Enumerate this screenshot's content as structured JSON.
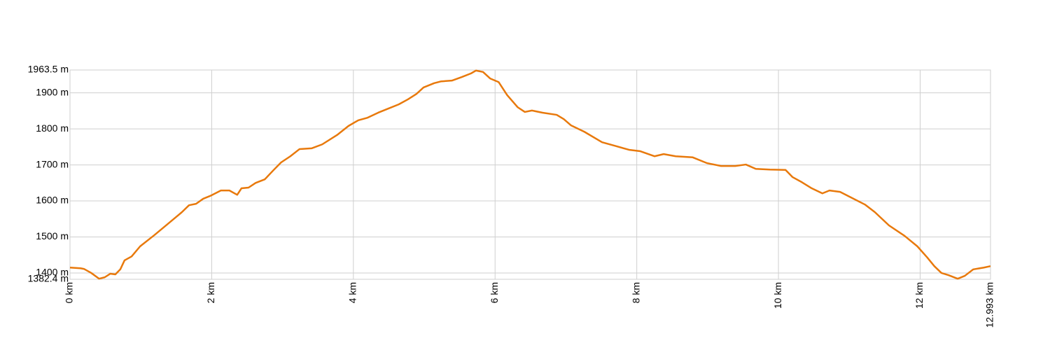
{
  "chart_data": {
    "type": "line",
    "color": "#e8790c",
    "grid": true,
    "x": [
      0,
      0.15,
      0.2,
      0.3,
      0.41,
      0.49,
      0.57,
      0.64,
      0.71,
      0.77,
      0.87,
      0.99,
      1.19,
      1.38,
      1.58,
      1.68,
      1.78,
      1.88,
      1.98,
      2.13,
      2.25,
      2.36,
      2.42,
      2.52,
      2.62,
      2.75,
      2.87,
      2.98,
      3.11,
      3.24,
      3.41,
      3.56,
      3.77,
      3.93,
      4.07,
      4.2,
      4.35,
      4.5,
      4.64,
      4.77,
      4.89,
      4.99,
      5.14,
      5.24,
      5.39,
      5.53,
      5.66,
      5.73,
      5.83,
      5.93,
      6.05,
      6.17,
      6.32,
      6.42,
      6.52,
      6.67,
      6.87,
      6.97,
      7.07,
      7.26,
      7.51,
      7.71,
      7.89,
      8.05,
      8.25,
      8.38,
      8.55,
      8.79,
      8.99,
      9.19,
      9.39,
      9.54,
      9.68,
      9.88,
      10.1,
      10.2,
      10.33,
      10.47,
      10.62,
      10.72,
      10.87,
      11.02,
      11.22,
      11.36,
      11.56,
      11.78,
      11.96,
      12.1,
      12.2,
      12.3,
      12.4,
      12.53,
      12.63,
      12.75,
      12.9,
      12.993
    ],
    "values": [
      1415,
      1413,
      1411,
      1400,
      1384,
      1388,
      1398,
      1396,
      1410,
      1435,
      1446,
      1474,
      1505,
      1536,
      1569,
      1588,
      1592,
      1606,
      1614,
      1629,
      1629,
      1617,
      1635,
      1637,
      1650,
      1660,
      1685,
      1707,
      1724,
      1744,
      1746,
      1757,
      1783,
      1808,
      1824,
      1831,
      1845,
      1857,
      1868,
      1882,
      1897,
      1915,
      1927,
      1932,
      1934,
      1944,
      1954,
      1962,
      1958,
      1940,
      1930,
      1894,
      1860,
      1847,
      1851,
      1845,
      1839,
      1827,
      1810,
      1792,
      1763,
      1752,
      1742,
      1738,
      1724,
      1730,
      1724,
      1721,
      1705,
      1697,
      1697,
      1701,
      1689,
      1687,
      1686,
      1666,
      1652,
      1635,
      1621,
      1629,
      1625,
      1610,
      1590,
      1569,
      1532,
      1503,
      1474,
      1443,
      1419,
      1400,
      1394,
      1384,
      1392,
      1410,
      1415,
      1419
    ],
    "xlim": [
      0,
      12.993
    ],
    "xticks": [
      {
        "value": 0,
        "label": "0 km"
      },
      {
        "value": 2,
        "label": "2 km"
      },
      {
        "value": 4,
        "label": "4 km"
      },
      {
        "value": 6,
        "label": "6 km"
      },
      {
        "value": 8,
        "label": "8 km"
      },
      {
        "value": 10,
        "label": "10 km"
      },
      {
        "value": 12,
        "label": "12 km"
      },
      {
        "value": 12.993,
        "label": "12.993 km"
      }
    ],
    "ylim": [
      1382.4,
      1963.5
    ],
    "yticks": [
      {
        "value": 1382.4,
        "label": "1382.4 m"
      },
      {
        "value": 1400,
        "label": "1400 m"
      },
      {
        "value": 1500,
        "label": "1500 m"
      },
      {
        "value": 1600,
        "label": "1600 m"
      },
      {
        "value": 1700,
        "label": "1700 m"
      },
      {
        "value": 1800,
        "label": "1800 m"
      },
      {
        "value": 1900,
        "label": "1900 m"
      },
      {
        "value": 1963.5,
        "label": "1963.5 m"
      }
    ]
  }
}
